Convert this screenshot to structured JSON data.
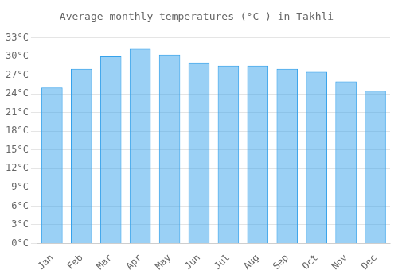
{
  "chart_data": {
    "type": "bar",
    "title": "Average monthly temperatures (°C ) in Takhli",
    "categories": [
      "Jan",
      "Feb",
      "Mar",
      "Apr",
      "May",
      "Jun",
      "Jul",
      "Aug",
      "Sep",
      "Oct",
      "Nov",
      "Dec"
    ],
    "values": [
      25.0,
      28.0,
      30.0,
      31.2,
      30.3,
      29.0,
      28.5,
      28.5,
      28.0,
      27.5,
      26.0,
      24.5
    ],
    "ylim": [
      0,
      34
    ],
    "yticks": [
      {
        "value": 0,
        "label": "0°C"
      },
      {
        "value": 3,
        "label": "3°C"
      },
      {
        "value": 6,
        "label": "6°C"
      },
      {
        "value": 9,
        "label": "9°C"
      },
      {
        "value": 12,
        "label": "12°C"
      },
      {
        "value": 15,
        "label": "15°C"
      },
      {
        "value": 18,
        "label": "18°C"
      },
      {
        "value": 21,
        "label": "21°C"
      },
      {
        "value": 24,
        "label": "24°C"
      },
      {
        "value": 27,
        "label": "27°C"
      },
      {
        "value": 30,
        "label": "30°C"
      },
      {
        "value": 33,
        "label": "33°C"
      }
    ],
    "grid": true
  }
}
